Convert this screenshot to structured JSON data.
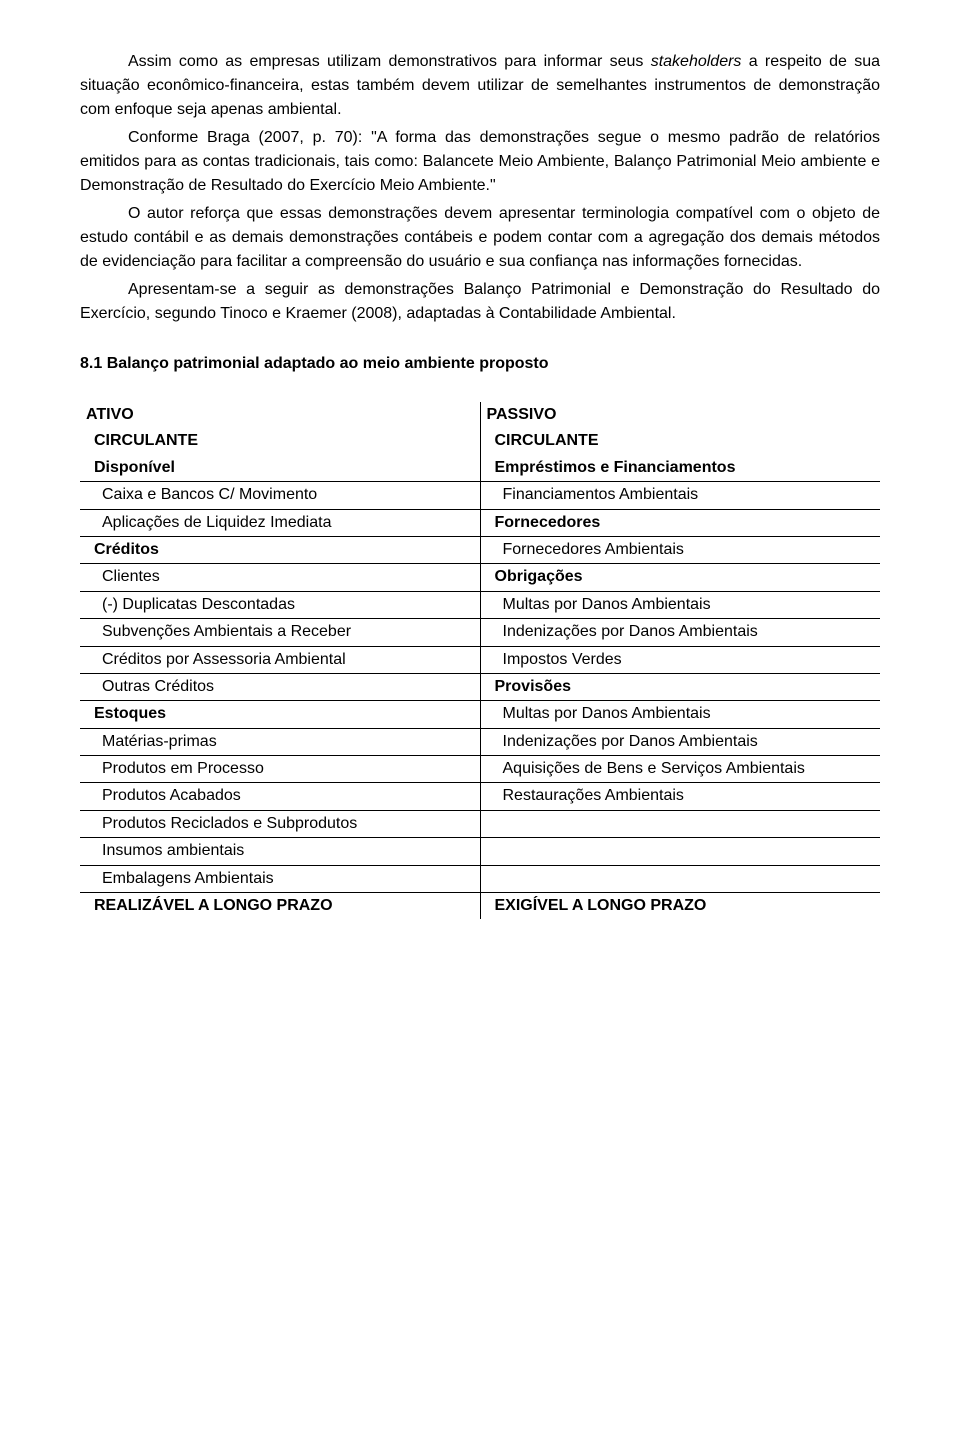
{
  "paragraphs": {
    "p1a": "Assim como as empresas utilizam demonstrativos para informar seus ",
    "p1b": "stakeholders",
    "p1c": " a respeito de sua situação econômico-financeira, estas também devem utilizar de semelhantes instrumentos de demonstração com enfoque seja apenas ambiental.",
    "p2": "Conforme Braga (2007, p. 70): \"A forma das demonstrações segue o mesmo padrão de relatórios emitidos para as contas tradicionais, tais como: Balancete Meio Ambiente, Balanço Patrimonial Meio ambiente e Demonstração de Resultado do Exercício Meio Ambiente.\"",
    "p3": "O autor reforça que essas demonstrações devem apresentar terminologia compatível com o objeto de estudo contábil e as demais demonstrações contábeis e podem contar com a agregação dos demais métodos de evidenciação para facilitar a compreensão do usuário e sua confiança nas informações fornecidas.",
    "p4": "Apresentam-se a seguir as demonstrações Balanço Patrimonial e Demonstração do Resultado do Exercício, segundo Tinoco e Kraemer (2008), adaptadas à Contabilidade Ambiental."
  },
  "heading": "8.1 Balanço patrimonial adaptado ao meio ambiente proposto",
  "table": {
    "header": {
      "left": "ATIVO",
      "right": "PASSIVO"
    },
    "rows": [
      {
        "l": "CIRCULANTE",
        "lb": true,
        "lp": 1,
        "r": "CIRCULANTE",
        "rb": true,
        "rp": 1,
        "noBorder": true
      },
      {
        "l": "Disponível",
        "lb": true,
        "lp": 1,
        "r": "Empréstimos e Financiamentos",
        "rb": true,
        "rp": 1
      },
      {
        "l": "Caixa e Bancos C/ Movimento",
        "lb": false,
        "lp": 2,
        "r": "Financiamentos Ambientais",
        "rb": false,
        "rp": 2
      },
      {
        "l": "Aplicações de Liquidez Imediata",
        "lb": false,
        "lp": 2,
        "r": "Fornecedores",
        "rb": true,
        "rp": 1
      },
      {
        "l": "Créditos",
        "lb": true,
        "lp": 1,
        "r": "Fornecedores Ambientais",
        "rb": false,
        "rp": 2
      },
      {
        "l": "Clientes",
        "lb": false,
        "lp": 2,
        "r": "Obrigações",
        "rb": true,
        "rp": 1
      },
      {
        "l": "(-) Duplicatas Descontadas",
        "lb": false,
        "lp": 2,
        "r": "Multas por Danos Ambientais",
        "rb": false,
        "rp": 2
      },
      {
        "l": "Subvenções Ambientais a Receber",
        "lb": false,
        "lp": 2,
        "r": "Indenizações por Danos Ambientais",
        "rb": false,
        "rp": 2
      },
      {
        "l": "Créditos por Assessoria Ambiental",
        "lb": false,
        "lp": 2,
        "r": "Impostos Verdes",
        "rb": false,
        "rp": 2
      },
      {
        "l": "Outras Créditos",
        "lb": false,
        "lp": 2,
        "r": "Provisões",
        "rb": true,
        "rp": 1
      },
      {
        "l": "Estoques",
        "lb": true,
        "lp": 1,
        "r": "Multas por Danos Ambientais",
        "rb": false,
        "rp": 2
      },
      {
        "l": "Matérias-primas",
        "lb": false,
        "lp": 2,
        "r": "Indenizações por Danos Ambientais",
        "rb": false,
        "rp": 2
      },
      {
        "l": "Produtos em Processo",
        "lb": false,
        "lp": 2,
        "r": "Aquisições de Bens e Serviços Ambientais",
        "rb": false,
        "rp": 2
      },
      {
        "l": "Produtos Acabados",
        "lb": false,
        "lp": 2,
        "r": "Restaurações Ambientais",
        "rb": false,
        "rp": 2
      },
      {
        "l": "Produtos Reciclados e Subprodutos",
        "lb": false,
        "lp": 2,
        "r": "",
        "rb": false,
        "rp": 2
      },
      {
        "l": "Insumos ambientais",
        "lb": false,
        "lp": 2,
        "r": "",
        "rb": false,
        "rp": 2
      },
      {
        "l": "Embalagens Ambientais",
        "lb": false,
        "lp": 2,
        "r": "",
        "rb": false,
        "rp": 2
      },
      {
        "l": "REALIZÁVEL A LONGO PRAZO",
        "lb": true,
        "lp": 1,
        "r": "EXIGÍVEL A LONGO PRAZO",
        "rb": true,
        "rp": 1,
        "noBorder": true
      }
    ]
  }
}
